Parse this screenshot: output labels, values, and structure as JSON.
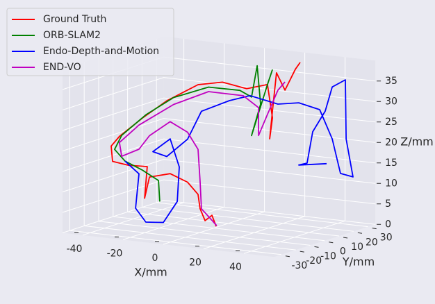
{
  "chart_data": {
    "type": "line3d",
    "xlabel": "X/mm",
    "ylabel": "Y/mm",
    "zlabel": "Z/mm",
    "xlim": [
      -50,
      55
    ],
    "ylim": [
      -35,
      35
    ],
    "zlim": [
      0,
      40
    ],
    "xticks": [
      -40,
      -20,
      0,
      20,
      40
    ],
    "yticks": [
      -30,
      -20,
      -10,
      0,
      10,
      20,
      30
    ],
    "zticks": [
      0,
      5,
      10,
      15,
      20,
      25,
      30,
      35
    ],
    "grid": true,
    "legend": "upper left",
    "series": [
      {
        "name": "Ground Truth",
        "color": "#ff0000",
        "x": [
          8.3,
          6.2,
          2.8,
          0.3,
          -0.7,
          -5.9,
          -14.5,
          -24.8,
          -27.2,
          -25.9,
          -35.2,
          -43.1,
          -43.8,
          -39.7,
          -28.3,
          -16.2,
          -0.7,
          11.4,
          9.1,
          19.4,
          21.9,
          20.5,
          21.9,
          23.9,
          28.1,
          22.5,
          24.9
        ],
        "y": [
          -10,
          -10,
          -10,
          -10,
          -10,
          -10,
          -10,
          -10,
          -10,
          -10,
          -10,
          -10,
          -10,
          -10,
          -10,
          -10,
          -10,
          -10,
          10,
          10,
          10,
          10,
          10,
          10,
          10,
          25,
          25
        ],
        "z": [
          2.0,
          4.6,
          3.1,
          5.9,
          9.3,
          12.0,
          13.6,
          12.2,
          6.9,
          14.7,
          14.5,
          15.0,
          18.7,
          21.3,
          26.4,
          31.3,
          36.1,
          37.4,
          33.4,
          35.0,
          27.0,
          21.8,
          28.7,
          38.1,
          34.1,
          37.2,
          39.0
        ]
      },
      {
        "name": "ORB-SLAM2",
        "color": "#008000",
        "x": [
          -19.7,
          -20.3,
          -28.3,
          -36.9,
          -42.1,
          -38.6,
          -26.6,
          -12.8,
          4.5,
          5.7,
          11.5,
          14.3,
          16.0,
          11.5,
          19.4,
          21.9
        ],
        "y": [
          -10,
          -10,
          -10,
          -10,
          -10,
          -10,
          -10,
          -10,
          -10,
          10,
          10,
          10,
          10,
          10,
          10,
          10
        ],
        "z": [
          6.5,
          11.6,
          13.7,
          15.4,
          18.0,
          21.6,
          27.3,
          32.3,
          35.8,
          32.8,
          31.5,
          39.3,
          30.0,
          22.1,
          35.0,
          38.8
        ]
      },
      {
        "name": "Endo-Depth-and-Motion",
        "color": "#0000ff",
        "x": [
          -36.9,
          -30.0,
          -31.7,
          -26.6,
          -17.9,
          -11.0,
          -10.0,
          -14.5,
          -23.1,
          -16.2,
          -5.9,
          1.0,
          0.5,
          10.8,
          24.6,
          24.2,
          34.6,
          40.8,
          44.9,
          51.1,
          47.7,
          47.3,
          40.8,
          37.3,
          31.1,
          28.3,
          24.2,
          38.0
        ],
        "y": [
          -10,
          -10,
          -10,
          -10,
          -10,
          -10,
          -10,
          -10,
          -10,
          -10,
          -10,
          -10,
          10,
          10,
          10,
          25,
          25,
          25,
          25,
          25,
          25,
          25,
          25,
          25,
          25,
          25,
          25,
          25
        ],
        "z": [
          15.4,
          12.7,
          4.2,
          1.1,
          1.5,
          7.0,
          15.5,
          22.1,
          18.5,
          17.7,
          22.5,
          29.7,
          30.0,
          31.8,
          30.5,
          29.1,
          28.0,
          21.2,
          13.0,
          12.5,
          21.6,
          36.0,
          33.9,
          27.8,
          22.4,
          14.6,
          13.9,
          15.0
        ]
      },
      {
        "name": "END-VO",
        "color": "#c000c0",
        "x": [
          8.6,
          4.5,
          1.0,
          0.3,
          -0.7,
          -5.9,
          -14.5,
          -24.8,
          -30.0,
          -38.6,
          -39.7,
          -30.0,
          -12.8,
          4.5,
          7.4,
          15.0,
          15.0,
          19.4,
          24.6,
          28.1
        ],
        "y": [
          -10,
          -10,
          -10,
          -10,
          -10,
          -10,
          -10,
          -10,
          -10,
          -10,
          -10,
          -10,
          -10,
          -10,
          10,
          10,
          10,
          10,
          10,
          10
        ],
        "z": [
          2.2,
          4.2,
          5.9,
          12.7,
          20.3,
          24.2,
          26.3,
          22.3,
          18.7,
          16.5,
          19.8,
          24.6,
          30.6,
          34.7,
          31.6,
          29.1,
          22.3,
          27.7,
          33.9,
          36.1
        ]
      }
    ]
  }
}
